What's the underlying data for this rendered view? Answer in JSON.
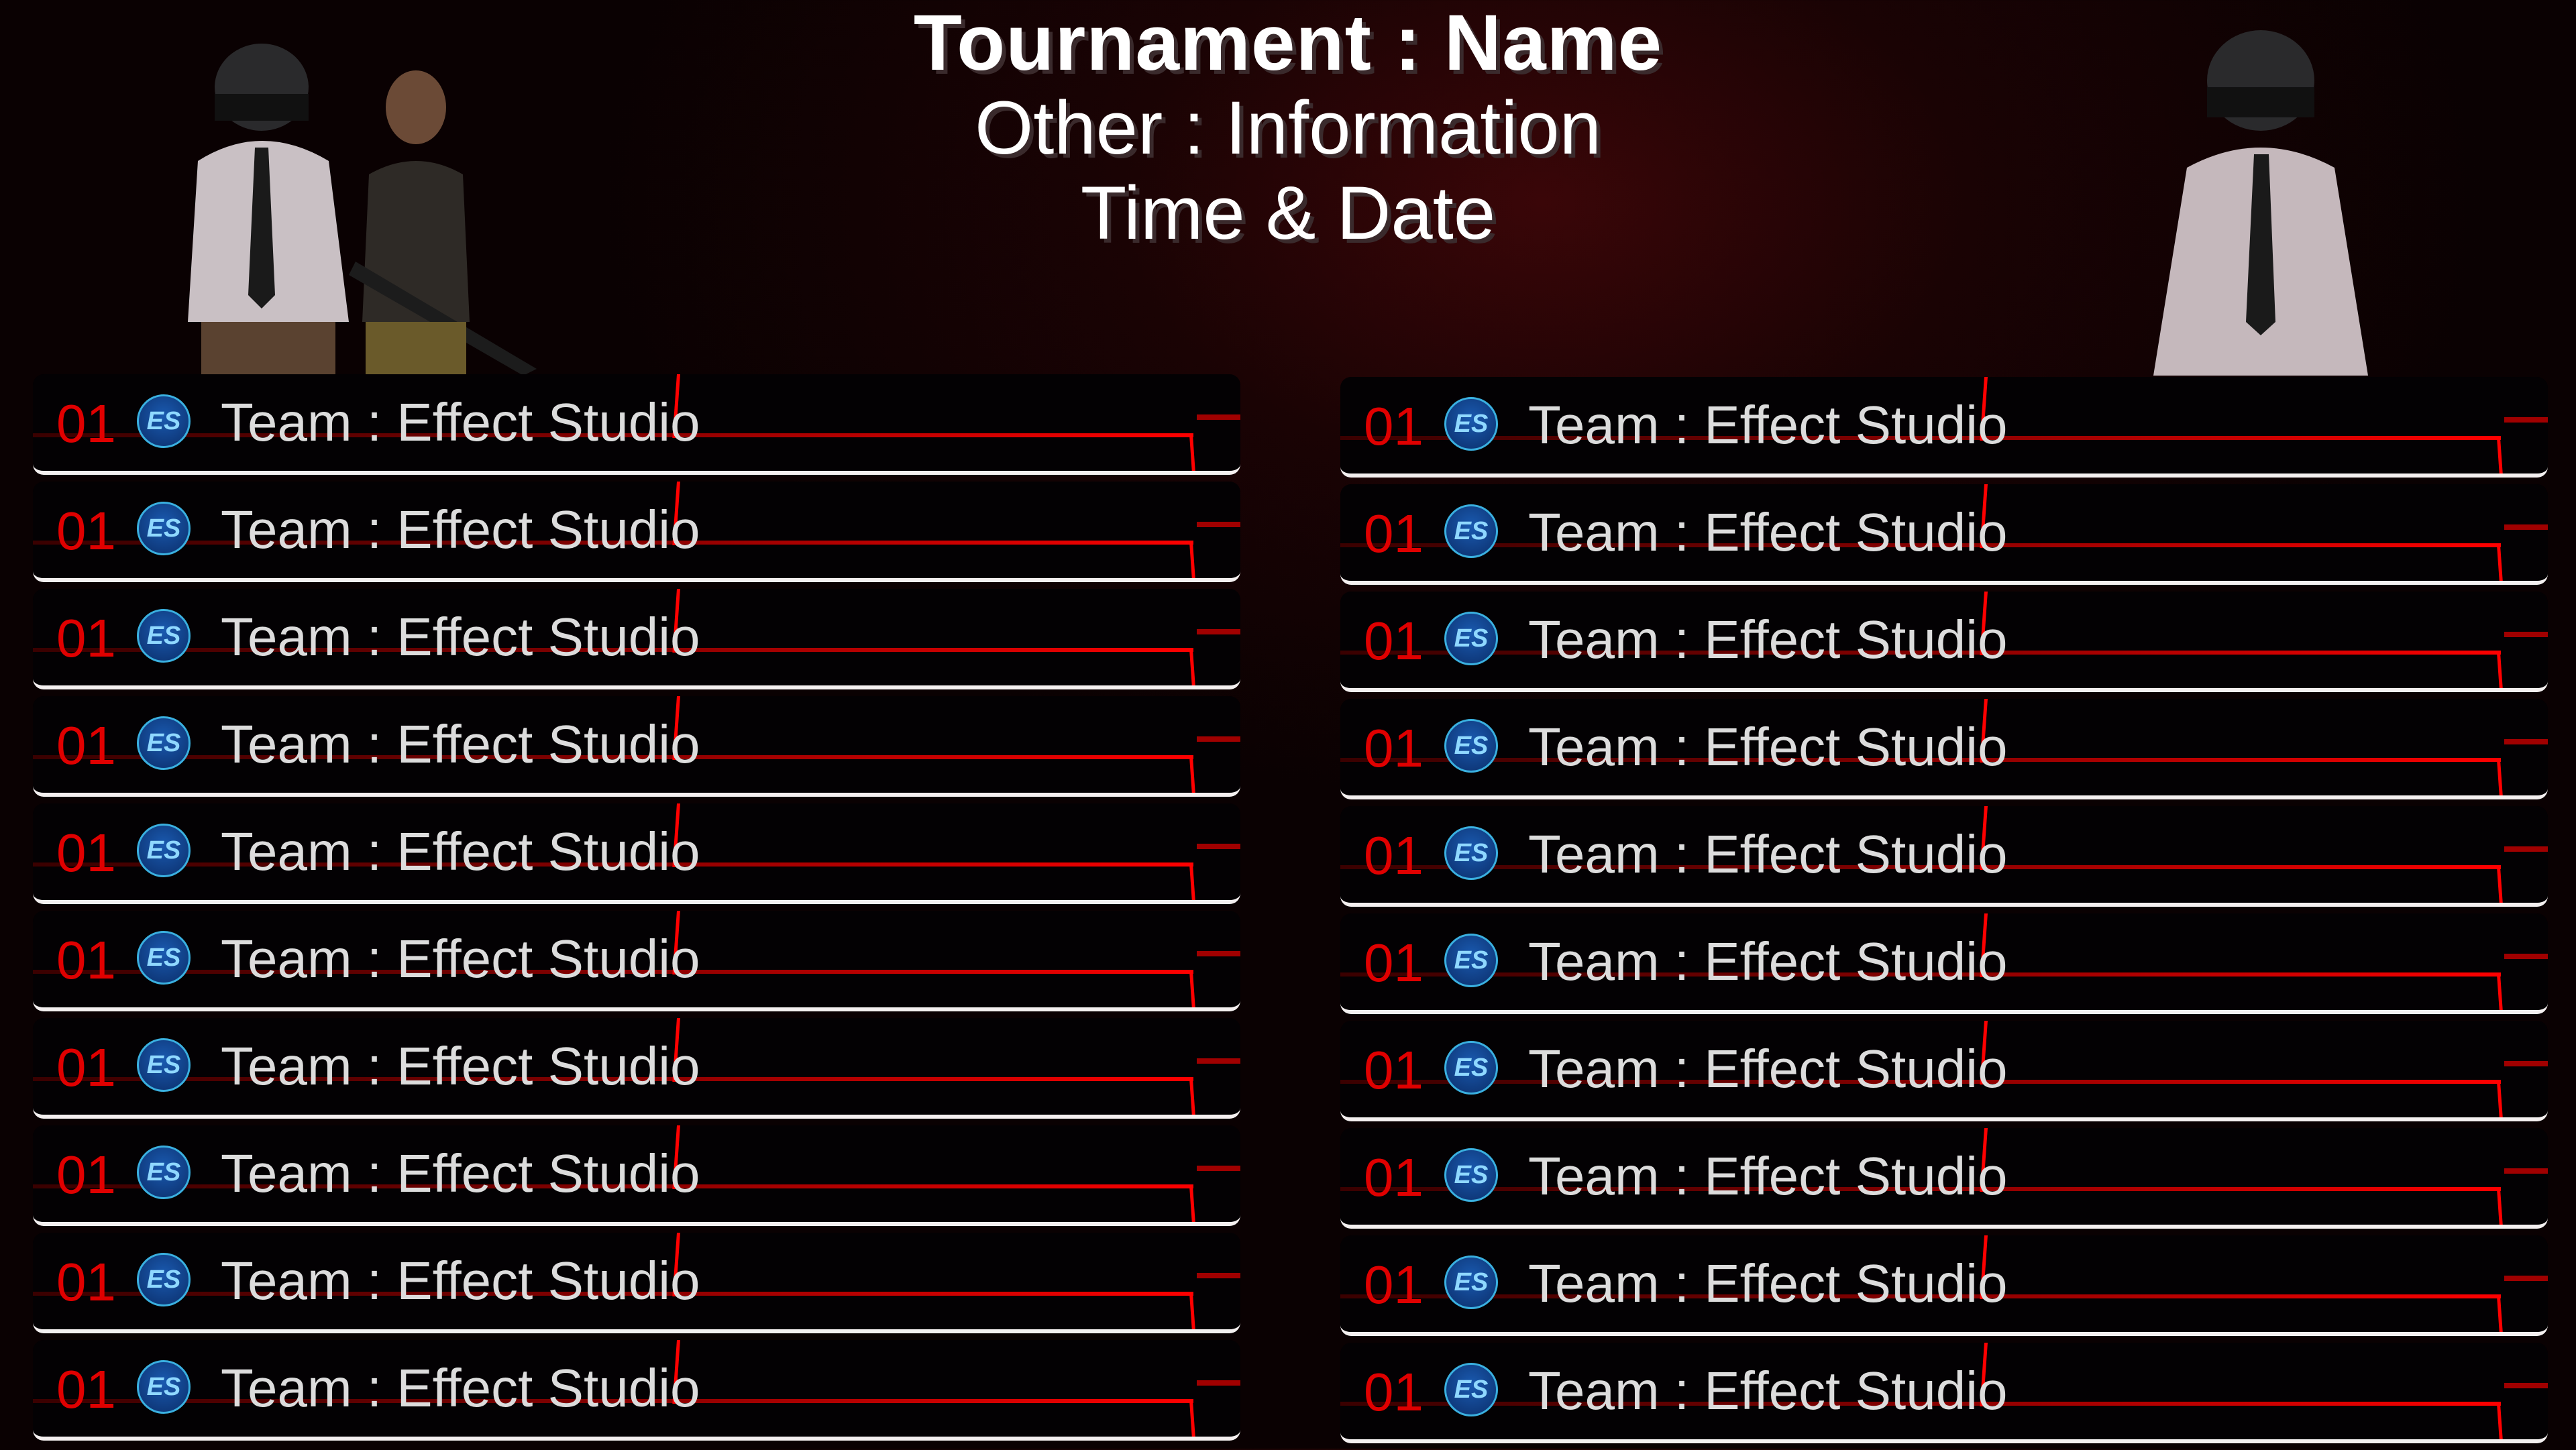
{
  "header": {
    "title": "Tournament : Name",
    "subtitle": "Other : Information",
    "datetime": "Time & Date"
  },
  "colors": {
    "accent": "#ff0000",
    "rank": "#e00000",
    "text": "#dcdcdc",
    "background": "#0a0102"
  },
  "logo": {
    "icon": "effect-studio-logo-icon",
    "text": "ES"
  },
  "left_column": [
    {
      "rank": "01",
      "team": "Team : Effect Studio"
    },
    {
      "rank": "01",
      "team": "Team : Effect Studio"
    },
    {
      "rank": "01",
      "team": "Team : Effect Studio"
    },
    {
      "rank": "01",
      "team": "Team : Effect Studio"
    },
    {
      "rank": "01",
      "team": "Team : Effect Studio"
    },
    {
      "rank": "01",
      "team": "Team : Effect Studio"
    },
    {
      "rank": "01",
      "team": "Team : Effect Studio"
    },
    {
      "rank": "01",
      "team": "Team : Effect Studio"
    },
    {
      "rank": "01",
      "team": "Team : Effect Studio"
    },
    {
      "rank": "01",
      "team": "Team : Effect Studio"
    }
  ],
  "right_column": [
    {
      "rank": "01",
      "team": "Team : Effect Studio"
    },
    {
      "rank": "01",
      "team": "Team : Effect Studio"
    },
    {
      "rank": "01",
      "team": "Team : Effect Studio"
    },
    {
      "rank": "01",
      "team": "Team : Effect Studio"
    },
    {
      "rank": "01",
      "team": "Team : Effect Studio"
    },
    {
      "rank": "01",
      "team": "Team : Effect Studio"
    },
    {
      "rank": "01",
      "team": "Team : Effect Studio"
    },
    {
      "rank": "01",
      "team": "Team : Effect Studio"
    },
    {
      "rank": "01",
      "team": "Team : Effect Studio"
    },
    {
      "rank": "01",
      "team": "Team : Effect Studio"
    }
  ]
}
